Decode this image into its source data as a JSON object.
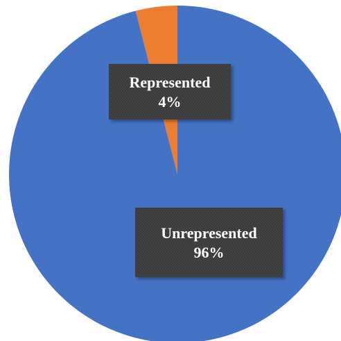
{
  "chart_data": {
    "type": "pie",
    "categories": [
      "Represented",
      "Unrepresented"
    ],
    "values": [
      4,
      96
    ],
    "unit": "%",
    "title": "",
    "legend": "none",
    "colors": {
      "Represented": "#ED7D31",
      "Unrepresented": "#4472C4"
    },
    "data_labels": [
      {
        "name": "Represented",
        "value": "4%"
      },
      {
        "name": "Unrepresented",
        "value": "96%"
      }
    ],
    "label_box_color": "#3a3a3a"
  }
}
